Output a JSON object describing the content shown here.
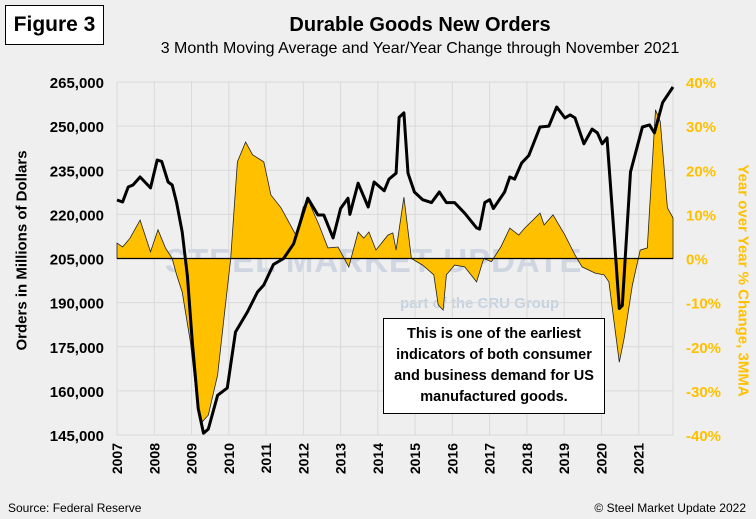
{
  "figure_label": "Figure 3",
  "watermark": {
    "line1": "STEEL MARKET UPDATE",
    "line2": "part of the CRU Group"
  },
  "annotation": "This is one of the earliest indicators of both consumer and business demand for US manufactured goods.",
  "source": "Source: Federal Reserve",
  "copyright": "© Steel Market Update 2022",
  "colors": {
    "orders_line": "#000000",
    "yoy_area": "#ffc000",
    "right_axis": "#ffc000",
    "grid": "#d9d9d9"
  },
  "chart_data": {
    "type": "line+area",
    "title": "Durable Goods New Orders",
    "subtitle": "3 Month Moving Average and Year/Year Change through November 2021",
    "ylabel": "Orders in Millions of Dollars",
    "y2label": "Year over Year % Change, 3MMA",
    "ylim": [
      145000,
      265000
    ],
    "y2lim": [
      -40,
      40
    ],
    "xlim": [
      2007,
      2021.92
    ],
    "yticks": [
      "265,000",
      "250,000",
      "235,000",
      "220,000",
      "205,000",
      "190,000",
      "175,000",
      "160,000",
      "145,000"
    ],
    "y2ticks": [
      "40%",
      "30%",
      "20%",
      "10%",
      "0%",
      "-10%",
      "-20%",
      "-30%",
      "-40%"
    ],
    "xticks": [
      "2007",
      "2008",
      "2009",
      "2010",
      "2011",
      "2012",
      "2013",
      "2014",
      "2015",
      "2016",
      "2017",
      "2018",
      "2019",
      "2020",
      "2021"
    ],
    "grid": true,
    "series": [
      {
        "axis": "left",
        "type": "line",
        "x": [
          2007.0,
          2007.15,
          2007.3,
          2007.43,
          2007.62,
          2007.9,
          2008.08,
          2008.2,
          2008.37,
          2008.48,
          2008.6,
          2008.75,
          2008.89,
          2009.02,
          2009.18,
          2009.32,
          2009.45,
          2009.7,
          2009.96,
          2010.18,
          2010.5,
          2010.77,
          2010.94,
          2011.2,
          2011.47,
          2011.74,
          2012.12,
          2012.39,
          2012.55,
          2012.8,
          2013.0,
          2013.2,
          2013.25,
          2013.47,
          2013.74,
          2013.9,
          2014.17,
          2014.3,
          2014.49,
          2014.57,
          2014.7,
          2014.81,
          2014.98,
          2015.2,
          2015.44,
          2015.65,
          2015.84,
          2016.06,
          2016.33,
          2016.65,
          2016.73,
          2016.87,
          2017.0,
          2017.1,
          2017.4,
          2017.54,
          2017.67,
          2017.86,
          2018.05,
          2018.35,
          2018.59,
          2018.8,
          2019.02,
          2019.16,
          2019.29,
          2019.53,
          2019.75,
          2019.89,
          2020.02,
          2020.15,
          2020.34,
          2020.48,
          2020.56,
          2020.78,
          2021.1,
          2021.29,
          2021.42,
          2021.64,
          2021.92
        ],
        "values": [
          224900,
          224200,
          229300,
          230000,
          232700,
          229000,
          238500,
          238000,
          231000,
          230000,
          224000,
          214000,
          199000,
          176600,
          154000,
          145600,
          147000,
          158500,
          161000,
          180000,
          186800,
          193600,
          196000,
          203000,
          205000,
          210000,
          225500,
          219800,
          219800,
          212000,
          222000,
          225500,
          220000,
          230600,
          222500,
          231000,
          228000,
          232000,
          234000,
          253000,
          254500,
          234000,
          227600,
          225000,
          224000,
          227600,
          224000,
          224000,
          220400,
          215400,
          215000,
          224000,
          225000,
          222000,
          227600,
          232700,
          232000,
          237500,
          240000,
          249700,
          250000,
          256500,
          252800,
          253800,
          252800,
          244000,
          249000,
          247700,
          244000,
          246000,
          213000,
          188000,
          189000,
          234400,
          249700,
          250400,
          247700,
          258000,
          263300
        ]
      },
      {
        "axis": "right",
        "type": "area",
        "x": [
          2007.0,
          2007.15,
          2007.35,
          2007.62,
          2007.9,
          2008.1,
          2008.3,
          2008.48,
          2008.6,
          2008.75,
          2008.97,
          2009.15,
          2009.29,
          2009.45,
          2009.7,
          2009.9,
          2010.05,
          2010.23,
          2010.45,
          2010.64,
          2010.94,
          2011.13,
          2011.4,
          2011.58,
          2011.8,
          2012.0,
          2012.15,
          2012.42,
          2012.66,
          2012.93,
          2013.22,
          2013.47,
          2013.62,
          2013.76,
          2013.95,
          2014.27,
          2014.4,
          2014.49,
          2014.7,
          2014.9,
          2015.2,
          2015.5,
          2015.62,
          2015.75,
          2015.84,
          2016.06,
          2016.33,
          2016.65,
          2016.84,
          2017.05,
          2017.3,
          2017.54,
          2017.78,
          2017.94,
          2018.35,
          2018.46,
          2018.7,
          2019.02,
          2019.29,
          2019.48,
          2019.83,
          2020.07,
          2020.2,
          2020.48,
          2020.61,
          2020.83,
          2021.04,
          2021.23,
          2021.45,
          2021.58,
          2021.77,
          2021.92
        ],
        "values": [
          3.5,
          2.6,
          4.6,
          8.7,
          1.5,
          6.5,
          2.4,
          0,
          -3.7,
          -7.6,
          -18.9,
          -32.5,
          -37,
          -35.5,
          -26.4,
          -11.2,
          0,
          21.9,
          26.4,
          23.5,
          21.9,
          14.4,
          11.5,
          8.7,
          5.3,
          11.7,
          12.8,
          7.6,
          2.4,
          2.6,
          -1.9,
          6.0,
          4.6,
          6.0,
          1.9,
          5.3,
          5.8,
          1.9,
          13.9,
          0,
          -1.5,
          -3.7,
          -10.5,
          -11.7,
          -3.7,
          -1.5,
          -1.9,
          -5.3,
          0,
          -0.7,
          2.6,
          6.9,
          5.3,
          6.9,
          10.3,
          7.6,
          9.9,
          5.3,
          0.8,
          -1.9,
          -3.3,
          -3.7,
          -5.3,
          -23.5,
          -18,
          -6,
          1.9,
          2.4,
          33.7,
          31,
          11.5,
          9.2
        ]
      }
    ]
  }
}
